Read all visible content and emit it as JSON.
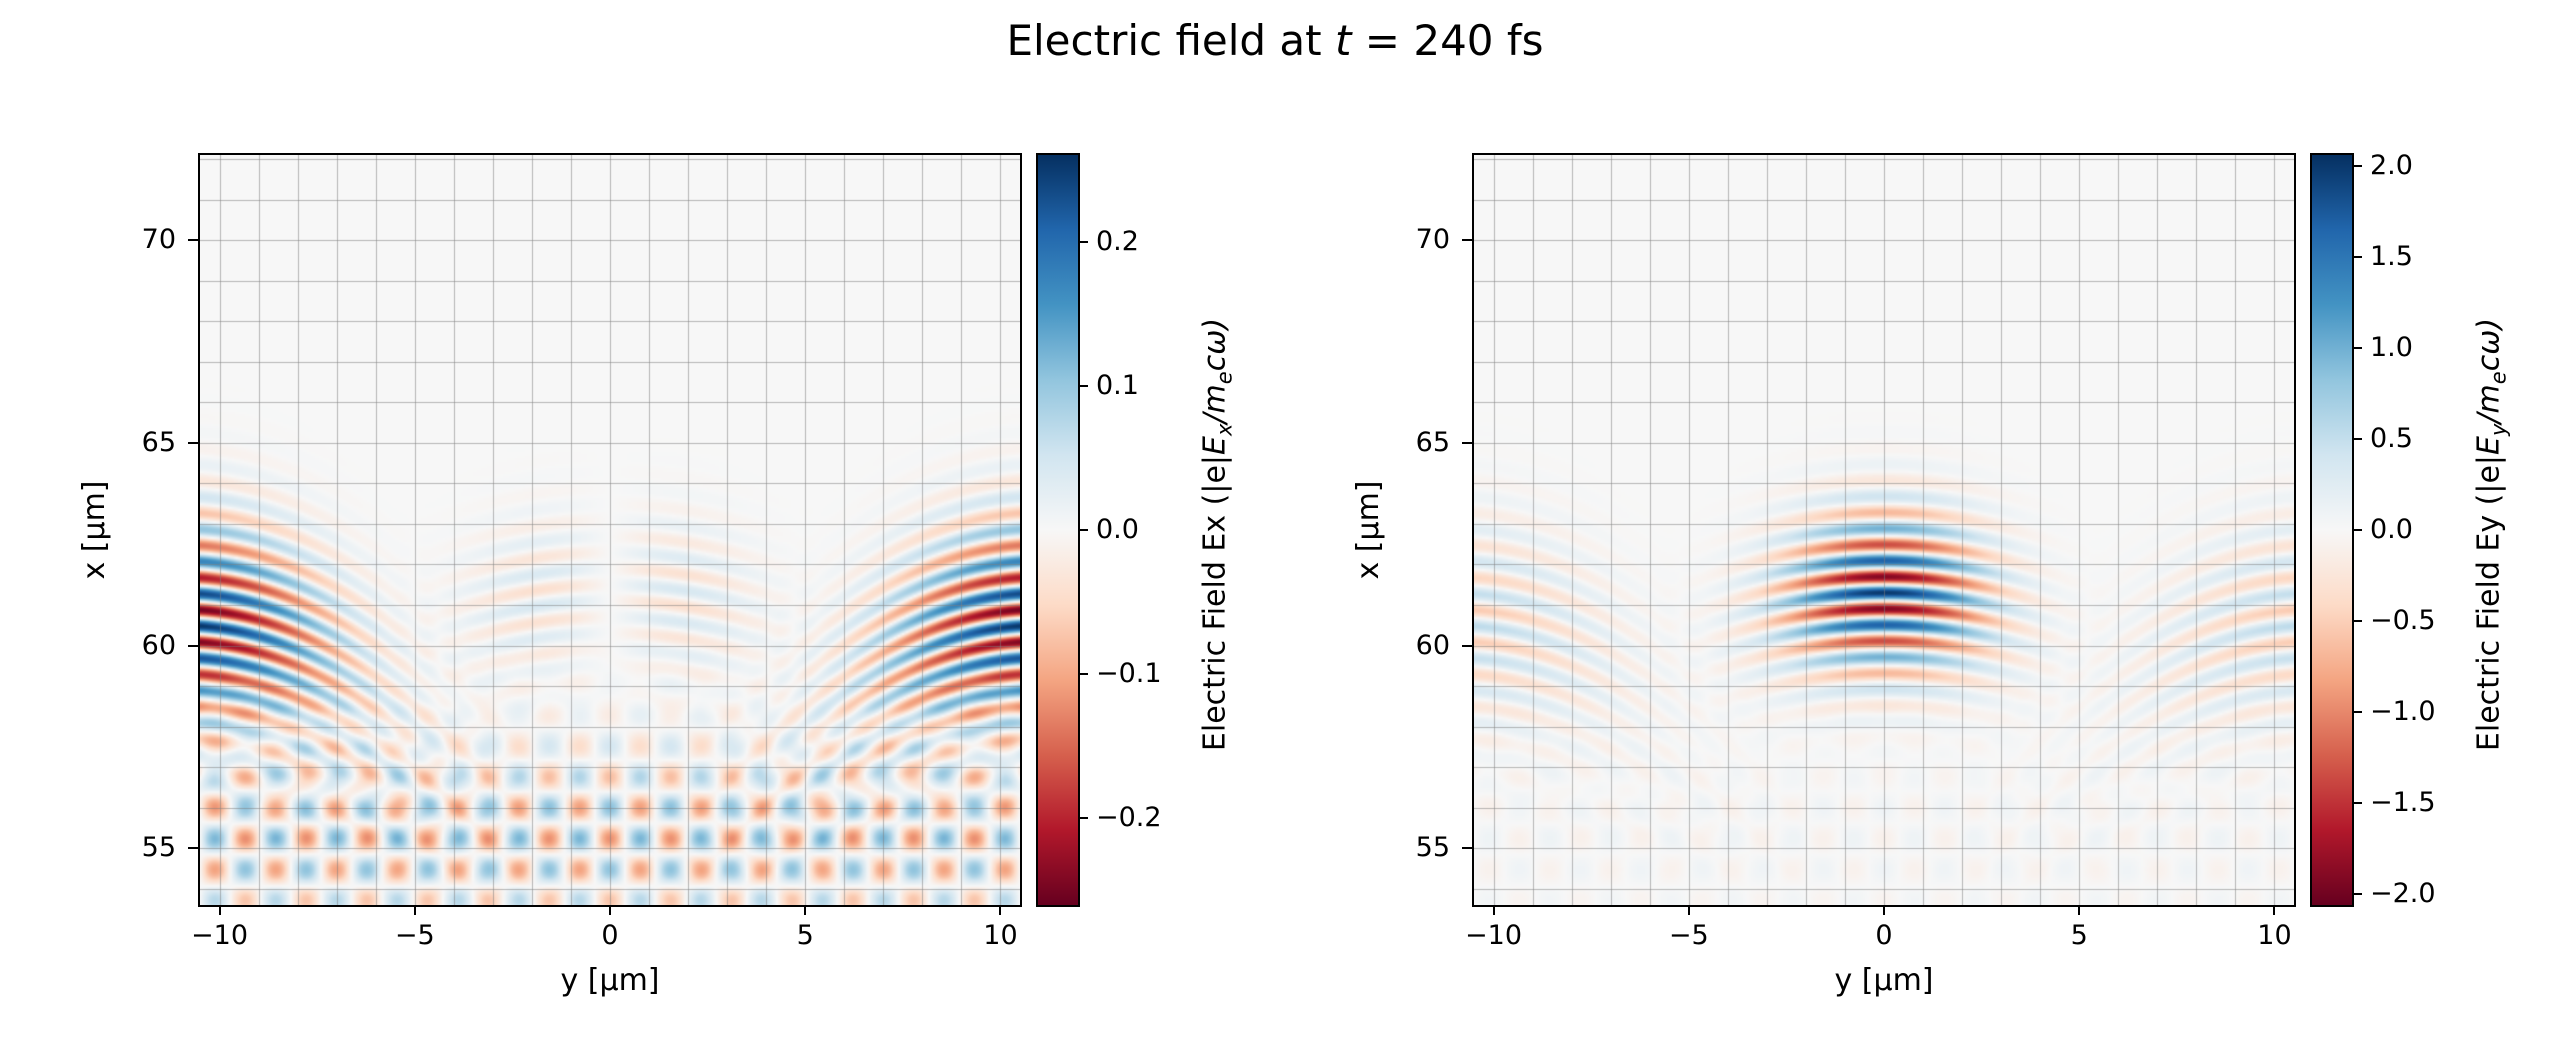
{
  "title": {
    "pre": "Electric field at ",
    "italic_t": "t",
    "post": " = 240 fs",
    "full": "Electric field at t = 240 fs"
  },
  "colors": {
    "background": "#ffffff",
    "text": "#000000",
    "spine": "#000000",
    "grid": "rgba(128,128,128,0.55)",
    "colormap_name": "RdBu",
    "colormap_stops": [
      "#67001f",
      "#b2182b",
      "#d6604d",
      "#f4a582",
      "#fddbc7",
      "#f7f7f7",
      "#d1e5f0",
      "#92c5de",
      "#4393c3",
      "#2166ac",
      "#053061"
    ]
  },
  "chart_data": [
    {
      "type": "heatmap",
      "component": "Ex",
      "xlabel": "y [μm]",
      "ylabel": "x [μm]",
      "xlim": [
        -10.5,
        10.5
      ],
      "ylim": [
        53.6,
        72.1
      ],
      "xticks": {
        "values": [
          -10,
          -5,
          0,
          5,
          10
        ],
        "labels": [
          "−10",
          "−5",
          "0",
          "5",
          "10"
        ]
      },
      "yticks": {
        "values": [
          55,
          60,
          65,
          70
        ],
        "labels": [
          "55",
          "60",
          "65",
          "70"
        ]
      },
      "grid": true,
      "grid_spacing_um": 1,
      "colorbar": {
        "vmin": -0.26,
        "vmax": 0.26,
        "ticks": {
          "values": [
            0.2,
            0.1,
            0.0,
            -0.1,
            -0.2
          ],
          "labels": [
            "0.2",
            "0.1",
            "0.0",
            "−0.1",
            "−0.2"
          ]
        },
        "label": "Electric Field Ex (|e|Ex/mecω)",
        "label_parts": {
          "pre": "Electric Field Ex (|e|",
          "var1": "E",
          "sub1": "x",
          "mid": "/m",
          "sub2": "e",
          "post": "cω)"
        }
      },
      "field_model": {
        "wavelength_um": 0.8,
        "x0": 61.3,
        "R": 13,
        "sx": 1.9,
        "sy": 2.6,
        "amp_main": 0.1,
        "odd_in_y": true,
        "main_phase": -1.5708,
        "xe": 60.6,
        "Re": 7.5,
        "sxe": 2.4,
        "ye": 11,
        "sye": 4.0,
        "amp_edge": 0.26,
        "edge_phase": 0.8,
        "xd": 55.3,
        "sxd": 2.3,
        "diag_period_um": 1.1,
        "amp_diag": 0.06
      }
    },
    {
      "type": "heatmap",
      "component": "Ey",
      "xlabel": "y [μm]",
      "ylabel": "x [μm]",
      "xlim": [
        -10.5,
        10.5
      ],
      "ylim": [
        53.6,
        72.1
      ],
      "xticks": {
        "values": [
          -10,
          -5,
          0,
          5,
          10
        ],
        "labels": [
          "−10",
          "−5",
          "0",
          "5",
          "10"
        ]
      },
      "yticks": {
        "values": [
          55,
          60,
          65,
          70
        ],
        "labels": [
          "55",
          "60",
          "65",
          "70"
        ]
      },
      "grid": true,
      "grid_spacing_um": 1,
      "colorbar": {
        "vmin": -2.06,
        "vmax": 2.06,
        "ticks": {
          "values": [
            2.0,
            1.5,
            1.0,
            0.5,
            0.0,
            -0.5,
            -1.0,
            -1.5,
            -2.0
          ],
          "labels": [
            "2.0",
            "1.5",
            "1.0",
            "0.5",
            "0.0",
            "−0.5",
            "−1.0",
            "−1.5",
            "−2.0"
          ]
        },
        "label": "Electric Field Ey (|e|Ey/mecω)",
        "label_parts": {
          "pre": "Electric Field Ey (|e|",
          "var1": "E",
          "sub1": "y",
          "mid": "/m",
          "sub2": "e",
          "post": "cω)"
        }
      },
      "field_model": {
        "wavelength_um": 0.8,
        "x0": 61.3,
        "R": 13,
        "sx": 1.9,
        "sy": 2.6,
        "amp_main": 2.0,
        "odd_in_y": false,
        "main_phase": 0,
        "xe": 60.6,
        "Re": 7.5,
        "sxe": 2.4,
        "ye": 11,
        "sye": 4.0,
        "amp_edge": 0.55,
        "edge_phase": 0.8,
        "xd": 55.3,
        "sxd": 2.3,
        "diag_period_um": 1.1,
        "amp_diag": 0.05
      }
    }
  ]
}
